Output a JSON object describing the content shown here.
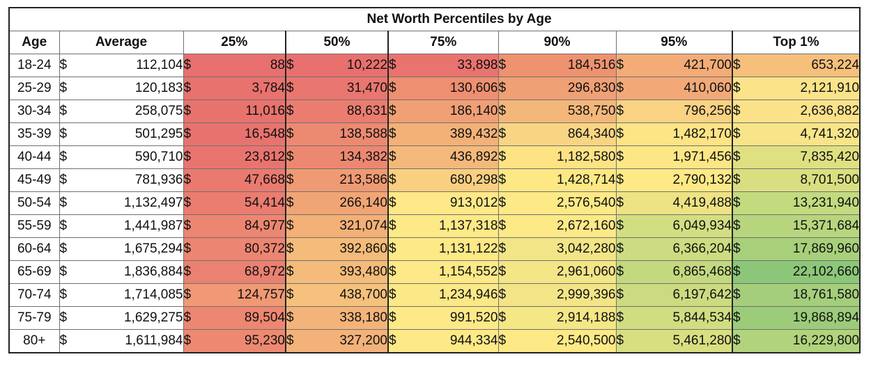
{
  "title": "Net Worth Percentiles by Age",
  "currency_symbol": "$",
  "headers": [
    "Age",
    "Average",
    "25%",
    "50%",
    "75%",
    "90%",
    "95%",
    "Top 1%"
  ],
  "rows": [
    {
      "age": "18-24",
      "values": [
        "112,104",
        "88",
        "10,222",
        "33,898",
        "184,516",
        "421,700",
        "653,224"
      ]
    },
    {
      "age": "25-29",
      "values": [
        "120,183",
        "3,784",
        "31,470",
        "130,606",
        "296,830",
        "410,060",
        "2,121,910"
      ]
    },
    {
      "age": "30-34",
      "values": [
        "258,075",
        "11,016",
        "88,631",
        "186,140",
        "538,750",
        "796,256",
        "2,636,882"
      ]
    },
    {
      "age": "35-39",
      "values": [
        "501,295",
        "16,548",
        "138,588",
        "389,432",
        "864,340",
        "1,482,170",
        "4,741,320"
      ]
    },
    {
      "age": "40-44",
      "values": [
        "590,710",
        "23,812",
        "134,382",
        "436,892",
        "1,182,580",
        "1,971,456",
        "7,835,420"
      ]
    },
    {
      "age": "45-49",
      "values": [
        "781,936",
        "47,668",
        "213,586",
        "680,298",
        "1,428,714",
        "2,790,132",
        "8,701,500"
      ]
    },
    {
      "age": "50-54",
      "values": [
        "1,132,497",
        "54,414",
        "266,140",
        "913,012",
        "2,576,540",
        "4,419,488",
        "13,231,940"
      ]
    },
    {
      "age": "55-59",
      "values": [
        "1,441,987",
        "84,977",
        "321,074",
        "1,137,318",
        "2,672,160",
        "6,049,934",
        "15,371,684"
      ]
    },
    {
      "age": "60-64",
      "values": [
        "1,675,294",
        "80,372",
        "392,860",
        "1,131,122",
        "3,042,280",
        "6,366,204",
        "17,869,960"
      ]
    },
    {
      "age": "65-69",
      "values": [
        "1,836,884",
        "68,972",
        "393,480",
        "1,154,552",
        "2,961,060",
        "6,865,468",
        "22,102,660"
      ]
    },
    {
      "age": "70-74",
      "values": [
        "1,714,085",
        "124,757",
        "438,700",
        "1,234,946",
        "2,999,396",
        "6,197,642",
        "18,761,580"
      ]
    },
    {
      "age": "75-79",
      "values": [
        "1,629,275",
        "89,504",
        "338,180",
        "991,520",
        "2,914,188",
        "5,844,534",
        "19,868,894"
      ]
    },
    {
      "age": "80+",
      "values": [
        "1,611,984",
        "95,230",
        "327,200",
        "944,334",
        "2,540,500",
        "5,461,280",
        "16,229,800"
      ]
    }
  ],
  "cell_colors": [
    [
      null,
      "#e8706e",
      "#e8706e",
      "#e9736f",
      "#ee9270",
      "#f3ac77",
      "#f6c07c"
    ],
    [
      null,
      "#e8726e",
      "#e9766f",
      "#ee8f71",
      "#f0a075",
      "#f2a977",
      "#fbe38a"
    ],
    [
      null,
      "#e8736e",
      "#ea7d70",
      "#f0a074",
      "#f4b77a",
      "#f9d283",
      "#fbe28a"
    ],
    [
      null,
      "#e8736e",
      "#ec8a71",
      "#f3b178",
      "#f9d583",
      "#fde485",
      "#f8e589"
    ],
    [
      null,
      "#e9746f",
      "#ec8871",
      "#f4b97a",
      "#fde384",
      "#fde685",
      "#dfe081"
    ],
    [
      null,
      "#ea7a6f",
      "#ef9a73",
      "#f9cf80",
      "#fde884",
      "#fde985",
      "#d9df81"
    ],
    [
      null,
      "#eb7c70",
      "#f1a575",
      "#fee887",
      "#fde986",
      "#eee384",
      "#c4da7f"
    ],
    [
      null,
      "#ed8671",
      "#f3b077",
      "#fee987",
      "#fde986",
      "#d3de81",
      "#b7d57d"
    ],
    [
      null,
      "#ec8571",
      "#f4bb7a",
      "#fee987",
      "#f2e587",
      "#cddc80",
      "#a8d07b"
    ],
    [
      null,
      "#eb8170",
      "#f4bb7a",
      "#fde987",
      "#f4e587",
      "#c4d97f",
      "#8cc779"
    ],
    [
      null,
      "#f09974",
      "#f6c17c",
      "#fbe887",
      "#f3e587",
      "#ccdb80",
      "#a4ce7b"
    ],
    [
      null,
      "#ed8771",
      "#f4b479",
      "#fee987",
      "#f5e686",
      "#d1dd81",
      "#9ccc7a"
    ],
    [
      null,
      "#ed8971",
      "#f3b279",
      "#fee987",
      "#fde986",
      "#d8df81",
      "#b1d37c"
    ]
  ]
}
